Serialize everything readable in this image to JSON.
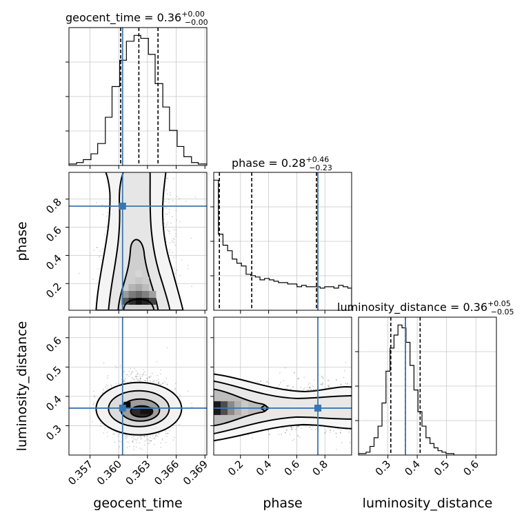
{
  "chart_data": {
    "type": "corner",
    "grid": true,
    "truth_color": "#3b76af",
    "parameters": [
      {
        "id": "geocent_time",
        "label": "geocent_time",
        "range": [
          0.3548,
          0.3692
        ],
        "ticks": [
          0.357,
          0.36,
          0.363,
          0.366,
          0.369
        ],
        "tick_labels": [
          "0.357",
          "0.360",
          "0.363",
          "0.366",
          "0.369"
        ],
        "truth": 0.3604,
        "quantiles": [
          0.3602,
          0.3621,
          0.3641
        ],
        "title": {
          "name": "geocent_time",
          "median": "0.36",
          "plus": "+0.00",
          "minus": "−0.00"
        }
      },
      {
        "id": "phase",
        "label": "phase",
        "range": [
          0.01,
          0.99
        ],
        "ticks": [
          0.2,
          0.4,
          0.6,
          0.8
        ],
        "tick_labels": [
          "0.2",
          "0.4",
          "0.6",
          "0.8"
        ],
        "truth": 0.75,
        "quantiles": [
          0.05,
          0.28,
          0.74
        ],
        "title": {
          "name": "phase",
          "median": "0.28",
          "plus": "+0.46",
          "minus": "−0.23"
        }
      },
      {
        "id": "luminosity_distance",
        "label": "luminosity_distance",
        "range": [
          0.2,
          0.67
        ],
        "ticks": [
          0.3,
          0.4,
          0.5,
          0.6
        ],
        "tick_labels": [
          "0.3",
          "0.4",
          "0.5",
          "0.6"
        ],
        "truth": 0.36,
        "quantiles": [
          0.31,
          0.36,
          0.41
        ],
        "title": {
          "name": "luminosity_distance",
          "median": "0.36",
          "plus": "+0.05",
          "minus": "−0.05"
        }
      }
    ],
    "histograms": [
      {
        "param": "geocent_time",
        "bin_edges": [
          0.3548,
          0.3556,
          0.3563,
          0.3571,
          0.3578,
          0.3586,
          0.3593,
          0.3601,
          0.3608,
          0.3616,
          0.3623,
          0.3631,
          0.3638,
          0.3646,
          0.3653,
          0.3661,
          0.3668,
          0.3676,
          0.3683,
          0.3692
        ],
        "counts": [
          1,
          2,
          4,
          8,
          15,
          33,
          54,
          72,
          85,
          89,
          87,
          76,
          56,
          40,
          24,
          13,
          6,
          2,
          1
        ]
      },
      {
        "param": "phase",
        "bin_edges": [
          0.01,
          0.0429,
          0.0757,
          0.1086,
          0.1414,
          0.1743,
          0.2071,
          0.24,
          0.2729,
          0.3057,
          0.3386,
          0.3714,
          0.4043,
          0.4371,
          0.47,
          0.5029,
          0.5357,
          0.5686,
          0.6014,
          0.6343,
          0.6671,
          0.7,
          0.7329,
          0.7657,
          0.7986,
          0.8314,
          0.8643,
          0.8971,
          0.93,
          0.9629,
          0.99
        ],
        "counts": [
          94,
          55,
          47,
          43,
          37,
          34,
          32,
          26,
          25,
          24,
          22,
          23,
          22,
          21,
          20,
          20,
          19,
          19,
          17,
          18,
          17,
          17,
          17,
          16,
          17,
          17,
          16,
          18,
          17,
          16
        ]
      },
      {
        "param": "luminosity_distance",
        "bin_edges": [
          0.2,
          0.2256,
          0.2391,
          0.2529,
          0.2665,
          0.28,
          0.2936,
          0.3074,
          0.3209,
          0.3345,
          0.3482,
          0.3619,
          0.3755,
          0.389,
          0.4027,
          0.4163,
          0.4299,
          0.4436,
          0.4572,
          0.4707,
          0.4844,
          0.4981,
          0.5116,
          0.5252,
          0.5389,
          0.5525,
          0.67
        ],
        "counts": [
          1,
          2,
          6,
          12,
          20,
          36,
          58,
          74,
          83,
          90,
          88,
          78,
          62,
          45,
          30,
          20,
          12,
          8,
          5,
          3,
          2,
          1,
          1,
          0,
          0,
          0
        ]
      }
    ],
    "pair_plots": [
      {
        "x": "geocent_time",
        "y": "phase",
        "density_peak": [
          0.3621,
          0.05
        ],
        "contour_levels": 4
      },
      {
        "x": "geocent_time",
        "y": "luminosity_distance",
        "density_peak": [
          0.3621,
          0.355
        ],
        "contour_levels": 4
      },
      {
        "x": "phase",
        "y": "luminosity_distance",
        "density_peak": [
          0.03,
          0.36
        ],
        "contour_levels": 4
      }
    ]
  }
}
